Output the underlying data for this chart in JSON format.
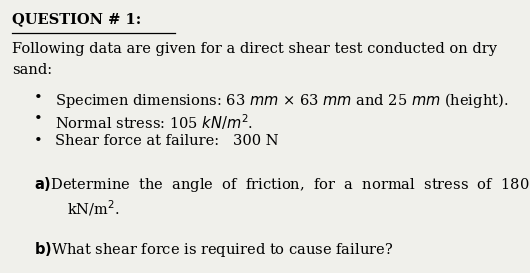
{
  "bg_color": "#f0f0eb",
  "title": "QUESTION # 1:",
  "intro_line1": "Following data are given for a direct shear test conducted on dry",
  "intro_line2": "sand:",
  "bullet1": "Specimen dimensions: 63 $\\mathit{mm}$ × 63 $\\mathit{mm}$ and 25 $\\mathit{mm}$ (height).",
  "bullet2": "Normal stress: 105 $\\mathit{kN/m^2}$.",
  "bullet3": "Shear force at failure:   300 N",
  "part_a_line1": "$\\mathbf{a)}$Determine  the  angle  of  friction,  for  a  normal  stress  of  180",
  "part_a_line2": "kN/m$^2$.",
  "part_b": "$\\mathbf{b)}$What shear force is required to cause failure?",
  "font_family": "DejaVu Serif",
  "font_size": 10.5
}
